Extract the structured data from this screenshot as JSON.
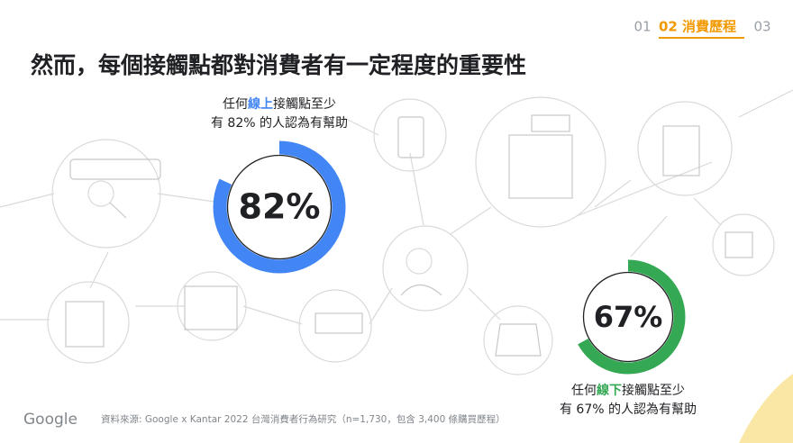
{
  "nav": [
    "01",
    "02 消費歷程",
    "03"
  ],
  "title": "然而，每個接觸點都對消費者有一定程度的重要性",
  "chart_data": [
    {
      "type": "donut",
      "value": 82,
      "value_label": "82%",
      "ylim": [
        0,
        100
      ],
      "color": "#4285f4",
      "caption": {
        "line1": [
          "任何",
          "線上",
          "接觸點至少"
        ],
        "line2": "有 82% 的人認為有幫助"
      }
    },
    {
      "type": "donut",
      "value": 67,
      "value_label": "67%",
      "ylim": [
        0,
        100
      ],
      "color": "#34a853",
      "caption": {
        "line1": [
          "任何",
          "線下",
          "接觸點至少"
        ],
        "line2": "有 67% 的人認為有幫助"
      }
    }
  ],
  "footer": {
    "logo": "Google",
    "source": "資料來源: Google x Kantar 2022 台灣消費者行為研究（n=1,730，包含 3,400 條購買歷程）"
  }
}
